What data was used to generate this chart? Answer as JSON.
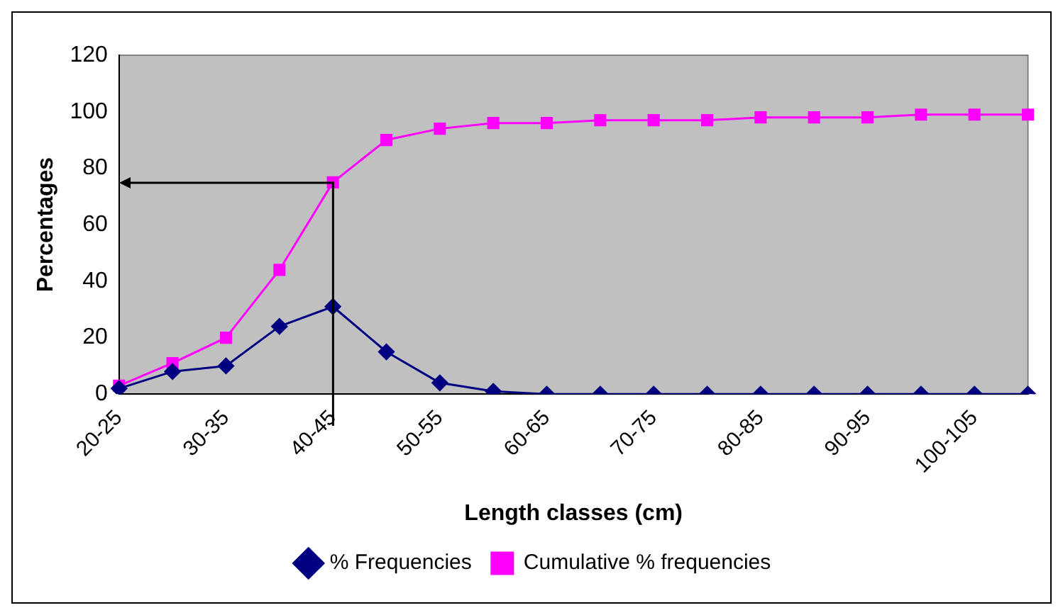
{
  "chart_data": {
    "type": "line",
    "xlabel": "Length classes (cm)",
    "ylabel": "Percentages",
    "categories": [
      "20-25",
      null,
      "30-35",
      null,
      "40-45",
      null,
      "50-55",
      null,
      "60-65",
      null,
      "70-75",
      null,
      "80-85",
      null,
      "90-95",
      null,
      "100-105",
      null
    ],
    "series": [
      {
        "name": "% Frequencies",
        "color": "#000080",
        "marker": "diamond",
        "values": [
          2,
          8,
          10,
          24,
          31,
          15,
          4,
          1,
          0,
          0,
          0,
          0,
          0,
          0,
          0,
          0,
          0,
          0
        ]
      },
      {
        "name": "Cumulative % frequencies",
        "color": "#ff00ff",
        "marker": "square",
        "values": [
          3,
          11,
          20,
          44,
          75,
          90,
          94,
          96,
          96,
          97,
          97,
          97,
          98,
          98,
          98,
          99,
          99,
          99
        ]
      }
    ],
    "ylim": [
      0,
      120
    ],
    "yticks": [
      0,
      20,
      40,
      60,
      80,
      100,
      120
    ],
    "grid": false,
    "legend": "bottom"
  }
}
